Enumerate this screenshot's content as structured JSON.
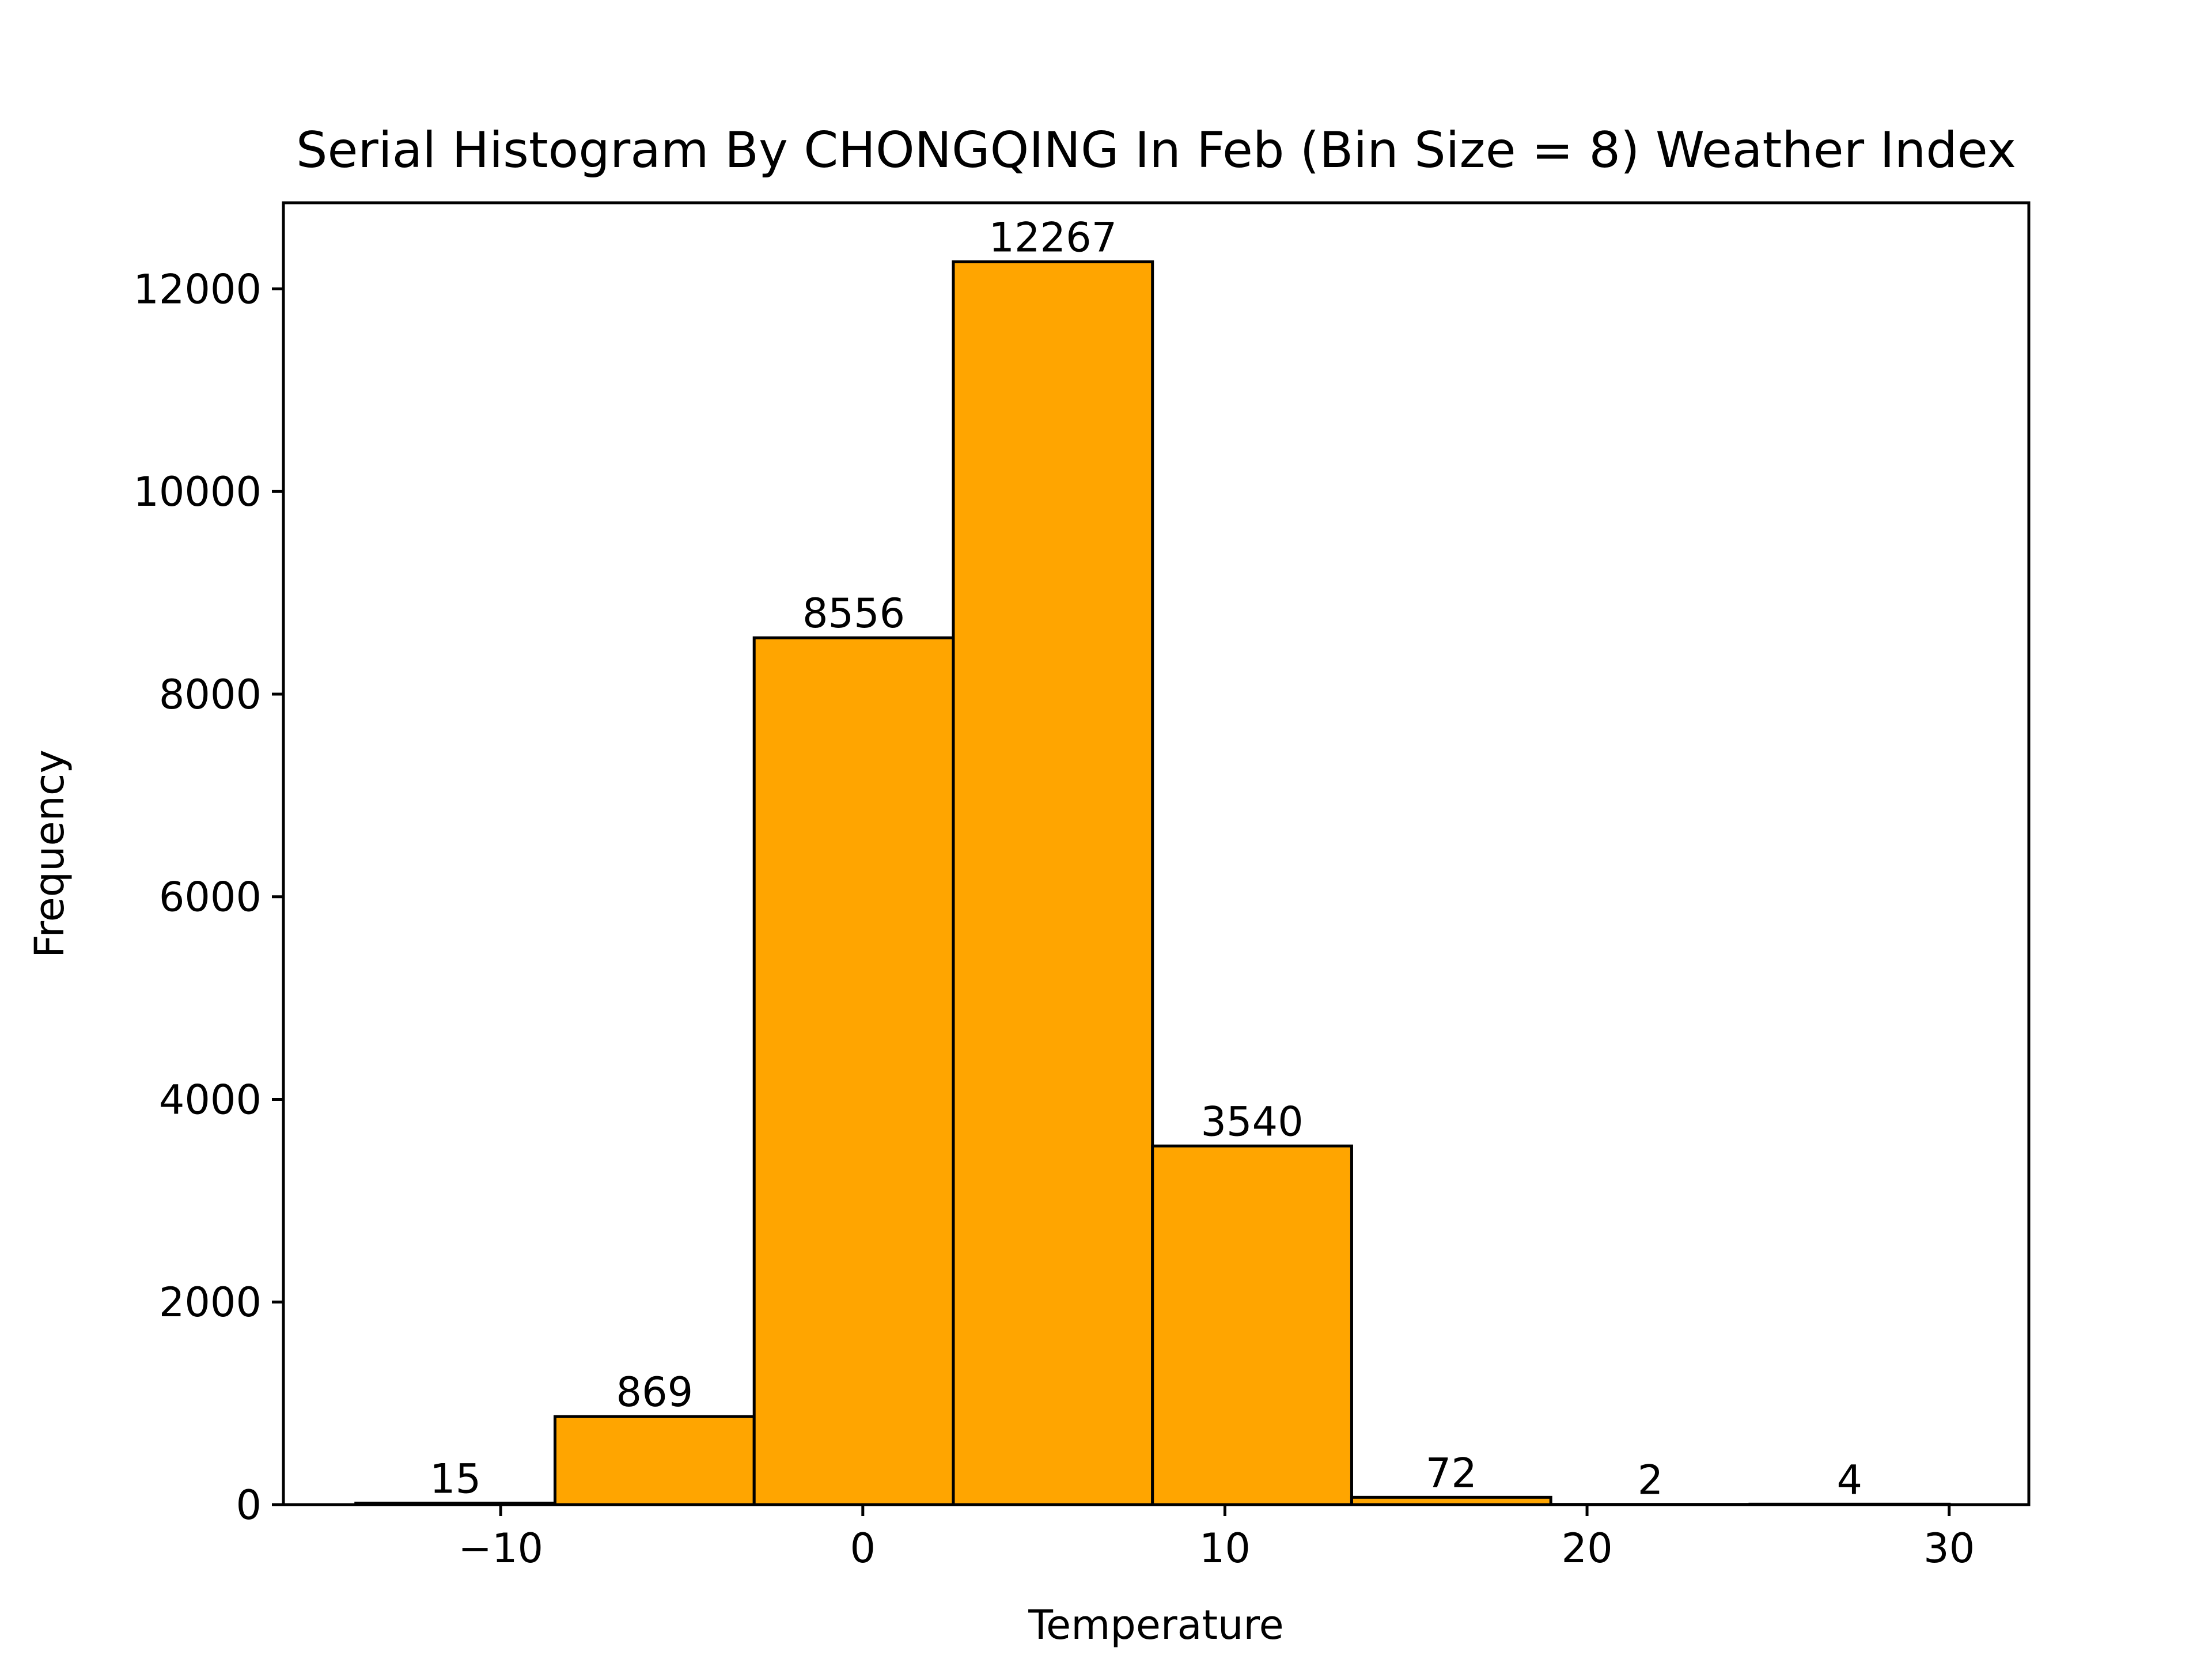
{
  "chart_data": {
    "type": "bar",
    "title": "Serial Histogram By CHONGQING In Feb (Bin Size = 8) Weather Index",
    "xlabel": "Temperature",
    "ylabel": "Frequency",
    "xlim": [
      -16,
      32.2
    ],
    "ylim": [
      0,
      12850
    ],
    "x_ticks": [
      -10,
      0,
      10,
      20,
      30
    ],
    "x_tick_labels": [
      "−10",
      "0",
      "10",
      "20",
      "30"
    ],
    "y_ticks": [
      0,
      2000,
      4000,
      6000,
      8000,
      10000,
      12000
    ],
    "y_tick_labels": [
      "0",
      "2000",
      "4000",
      "6000",
      "8000",
      "10000",
      "12000"
    ],
    "bin_edges": [
      -14,
      -8.5,
      -3,
      2.5,
      8,
      13.5,
      19,
      24.5,
      30
    ],
    "values": [
      15,
      869,
      8556,
      12267,
      3540,
      72,
      2,
      4
    ],
    "value_labels": [
      "15",
      "869",
      "8556",
      "12267",
      "3540",
      "72",
      "2",
      "4"
    ],
    "bar_color": "#ffa500",
    "edge_color": "#000000",
    "grid": false,
    "legend": false
  }
}
